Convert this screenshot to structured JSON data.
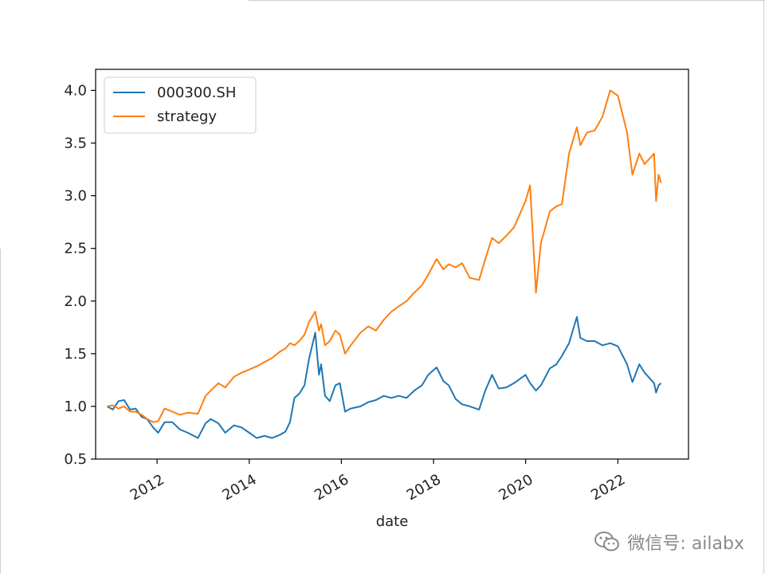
{
  "watermark": {
    "text": "微信号: ailabx",
    "icon": "wechat-icon"
  },
  "chart_data": {
    "type": "line",
    "title": "",
    "xlabel": "date",
    "ylabel": "",
    "xlim": [
      "2010-09-01",
      "2023-07-15"
    ],
    "ylim": [
      0.5,
      4.2
    ],
    "yticks": [
      0.5,
      1.0,
      1.5,
      2.0,
      2.5,
      3.0,
      3.5,
      4.0
    ],
    "ytick_labels": [
      "0.5",
      "1.0",
      "1.5",
      "2.0",
      "2.5",
      "3.0",
      "3.5",
      "4.0"
    ],
    "xticks": [
      "2012-01-01",
      "2014-01-01",
      "2016-01-01",
      "2018-01-01",
      "2020-01-01",
      "2022-01-01"
    ],
    "xtick_labels": [
      "2012",
      "2014",
      "2016",
      "2018",
      "2020",
      "2022"
    ],
    "grid": false,
    "legend": {
      "position": "top-left"
    },
    "series": [
      {
        "name": "000300.SH",
        "color": "#1f77b4",
        "points": [
          [
            "2010-12-01",
            1.0
          ],
          [
            "2011-01-15",
            0.97
          ],
          [
            "2011-03-01",
            1.05
          ],
          [
            "2011-04-15",
            1.06
          ],
          [
            "2011-06-01",
            0.97
          ],
          [
            "2011-07-15",
            0.98
          ],
          [
            "2011-09-01",
            0.9
          ],
          [
            "2011-10-15",
            0.88
          ],
          [
            "2011-12-01",
            0.8
          ],
          [
            "2012-01-10",
            0.75
          ],
          [
            "2012-03-01",
            0.85
          ],
          [
            "2012-05-01",
            0.85
          ],
          [
            "2012-07-01",
            0.78
          ],
          [
            "2012-09-01",
            0.75
          ],
          [
            "2012-11-20",
            0.7
          ],
          [
            "2013-01-20",
            0.84
          ],
          [
            "2013-03-01",
            0.88
          ],
          [
            "2013-05-01",
            0.84
          ],
          [
            "2013-06-25",
            0.75
          ],
          [
            "2013-09-01",
            0.82
          ],
          [
            "2013-11-01",
            0.8
          ],
          [
            "2014-01-01",
            0.75
          ],
          [
            "2014-03-01",
            0.7
          ],
          [
            "2014-05-01",
            0.72
          ],
          [
            "2014-07-01",
            0.7
          ],
          [
            "2014-09-01",
            0.73
          ],
          [
            "2014-10-15",
            0.76
          ],
          [
            "2014-11-20",
            0.85
          ],
          [
            "2014-12-25",
            1.08
          ],
          [
            "2015-02-01",
            1.12
          ],
          [
            "2015-03-15",
            1.2
          ],
          [
            "2015-04-20",
            1.45
          ],
          [
            "2015-06-08",
            1.7
          ],
          [
            "2015-07-08",
            1.3
          ],
          [
            "2015-07-25",
            1.4
          ],
          [
            "2015-08-25",
            1.1
          ],
          [
            "2015-10-01",
            1.05
          ],
          [
            "2015-11-15",
            1.2
          ],
          [
            "2015-12-20",
            1.22
          ],
          [
            "2016-01-30",
            0.95
          ],
          [
            "2016-03-15",
            0.98
          ],
          [
            "2016-06-01",
            1.0
          ],
          [
            "2016-08-01",
            1.04
          ],
          [
            "2016-10-01",
            1.06
          ],
          [
            "2016-12-01",
            1.1
          ],
          [
            "2017-02-01",
            1.08
          ],
          [
            "2017-04-01",
            1.1
          ],
          [
            "2017-06-01",
            1.08
          ],
          [
            "2017-08-01",
            1.15
          ],
          [
            "2017-10-01",
            1.2
          ],
          [
            "2017-11-20",
            1.3
          ],
          [
            "2018-01-25",
            1.37
          ],
          [
            "2018-03-20",
            1.24
          ],
          [
            "2018-05-01",
            1.2
          ],
          [
            "2018-06-25",
            1.07
          ],
          [
            "2018-08-15",
            1.02
          ],
          [
            "2018-10-15",
            1.0
          ],
          [
            "2018-12-28",
            0.97
          ],
          [
            "2019-02-15",
            1.15
          ],
          [
            "2019-04-10",
            1.3
          ],
          [
            "2019-06-01",
            1.17
          ],
          [
            "2019-08-01",
            1.18
          ],
          [
            "2019-10-01",
            1.22
          ],
          [
            "2019-12-31",
            1.3
          ],
          [
            "2020-02-05",
            1.22
          ],
          [
            "2020-03-23",
            1.15
          ],
          [
            "2020-05-01",
            1.2
          ],
          [
            "2020-07-10",
            1.36
          ],
          [
            "2020-09-01",
            1.4
          ],
          [
            "2020-10-15",
            1.48
          ],
          [
            "2020-12-10",
            1.6
          ],
          [
            "2021-02-10",
            1.85
          ],
          [
            "2021-03-10",
            1.65
          ],
          [
            "2021-05-01",
            1.62
          ],
          [
            "2021-07-01",
            1.62
          ],
          [
            "2021-09-01",
            1.58
          ],
          [
            "2021-11-01",
            1.6
          ],
          [
            "2022-01-01",
            1.57
          ],
          [
            "2022-03-15",
            1.4
          ],
          [
            "2022-04-26",
            1.23
          ],
          [
            "2022-06-20",
            1.4
          ],
          [
            "2022-08-01",
            1.32
          ],
          [
            "2022-10-15",
            1.22
          ],
          [
            "2022-10-31",
            1.13
          ],
          [
            "2022-11-20",
            1.2
          ],
          [
            "2022-12-10",
            1.22
          ]
        ]
      },
      {
        "name": "strategy",
        "color": "#ff7f0e",
        "points": [
          [
            "2010-12-01",
            1.0
          ],
          [
            "2011-01-15",
            1.01
          ],
          [
            "2011-03-01",
            0.98
          ],
          [
            "2011-04-15",
            1.0
          ],
          [
            "2011-06-01",
            0.95
          ],
          [
            "2011-07-15",
            0.95
          ],
          [
            "2011-09-01",
            0.92
          ],
          [
            "2011-10-15",
            0.88
          ],
          [
            "2011-12-01",
            0.85
          ],
          [
            "2012-01-10",
            0.86
          ],
          [
            "2012-03-01",
            0.98
          ],
          [
            "2012-05-01",
            0.95
          ],
          [
            "2012-07-01",
            0.92
          ],
          [
            "2012-09-01",
            0.94
          ],
          [
            "2012-11-20",
            0.93
          ],
          [
            "2013-01-20",
            1.1
          ],
          [
            "2013-03-01",
            1.15
          ],
          [
            "2013-05-01",
            1.22
          ],
          [
            "2013-06-25",
            1.18
          ],
          [
            "2013-09-01",
            1.28
          ],
          [
            "2013-11-01",
            1.32
          ],
          [
            "2014-01-01",
            1.35
          ],
          [
            "2014-03-01",
            1.38
          ],
          [
            "2014-05-01",
            1.42
          ],
          [
            "2014-07-01",
            1.46
          ],
          [
            "2014-09-01",
            1.52
          ],
          [
            "2014-10-15",
            1.55
          ],
          [
            "2014-11-20",
            1.6
          ],
          [
            "2014-12-25",
            1.58
          ],
          [
            "2015-02-01",
            1.62
          ],
          [
            "2015-03-15",
            1.68
          ],
          [
            "2015-04-20",
            1.8
          ],
          [
            "2015-06-08",
            1.9
          ],
          [
            "2015-07-08",
            1.72
          ],
          [
            "2015-07-25",
            1.78
          ],
          [
            "2015-08-25",
            1.58
          ],
          [
            "2015-10-01",
            1.62
          ],
          [
            "2015-11-15",
            1.72
          ],
          [
            "2015-12-20",
            1.68
          ],
          [
            "2016-01-30",
            1.5
          ],
          [
            "2016-03-15",
            1.58
          ],
          [
            "2016-06-01",
            1.7
          ],
          [
            "2016-08-01",
            1.76
          ],
          [
            "2016-10-01",
            1.72
          ],
          [
            "2016-12-01",
            1.82
          ],
          [
            "2017-02-01",
            1.9
          ],
          [
            "2017-04-01",
            1.95
          ],
          [
            "2017-06-01",
            2.0
          ],
          [
            "2017-08-01",
            2.08
          ],
          [
            "2017-10-01",
            2.15
          ],
          [
            "2017-11-20",
            2.25
          ],
          [
            "2018-01-25",
            2.4
          ],
          [
            "2018-03-20",
            2.3
          ],
          [
            "2018-05-01",
            2.35
          ],
          [
            "2018-06-25",
            2.32
          ],
          [
            "2018-08-15",
            2.36
          ],
          [
            "2018-10-15",
            2.22
          ],
          [
            "2018-12-28",
            2.2
          ],
          [
            "2019-02-15",
            2.4
          ],
          [
            "2019-04-10",
            2.6
          ],
          [
            "2019-06-01",
            2.55
          ],
          [
            "2019-08-01",
            2.62
          ],
          [
            "2019-10-01",
            2.7
          ],
          [
            "2019-12-31",
            2.95
          ],
          [
            "2020-02-05",
            3.1
          ],
          [
            "2020-03-23",
            2.08
          ],
          [
            "2020-05-01",
            2.55
          ],
          [
            "2020-07-10",
            2.85
          ],
          [
            "2020-09-01",
            2.9
          ],
          [
            "2020-10-15",
            2.92
          ],
          [
            "2020-12-10",
            3.4
          ],
          [
            "2021-02-10",
            3.65
          ],
          [
            "2021-03-10",
            3.48
          ],
          [
            "2021-05-01",
            3.6
          ],
          [
            "2021-07-01",
            3.62
          ],
          [
            "2021-09-01",
            3.75
          ],
          [
            "2021-11-01",
            4.0
          ],
          [
            "2022-01-01",
            3.95
          ],
          [
            "2022-03-15",
            3.6
          ],
          [
            "2022-04-26",
            3.2
          ],
          [
            "2022-06-20",
            3.4
          ],
          [
            "2022-08-01",
            3.3
          ],
          [
            "2022-10-15",
            3.4
          ],
          [
            "2022-10-31",
            2.95
          ],
          [
            "2022-11-20",
            3.2
          ],
          [
            "2022-12-10",
            3.12
          ]
        ]
      }
    ]
  }
}
